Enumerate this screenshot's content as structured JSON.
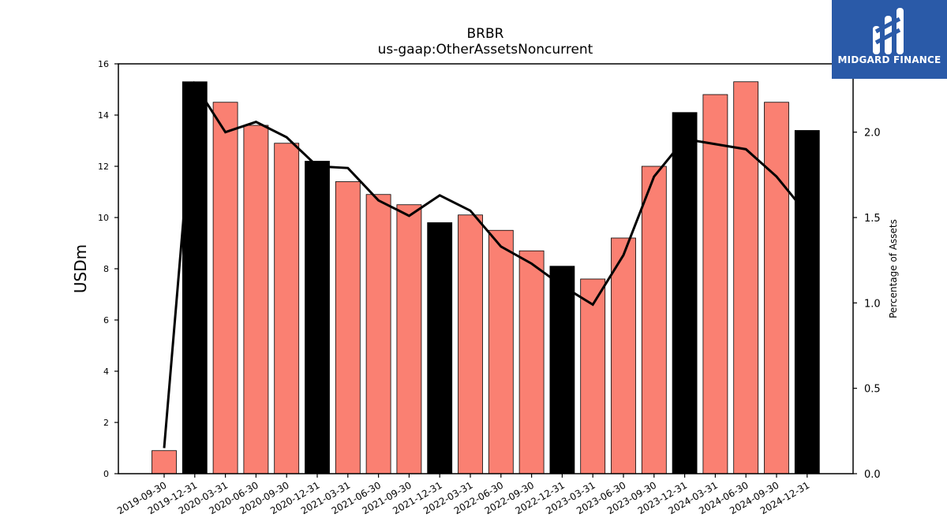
{
  "chart_data": {
    "type": "bar",
    "title": "BRBR",
    "subtitle": "us-gaap:OtherAssetsNoncurrent",
    "ylabel": "USDm",
    "y2label": "Percentage of Assets",
    "ylim": [
      0,
      16
    ],
    "y2lim": [
      0,
      2.4
    ],
    "yticks": [
      "0",
      "2",
      "4",
      "6",
      "8",
      "10",
      "12",
      "14",
      "16"
    ],
    "y2ticks": [
      "0.0",
      "0.5",
      "1.0",
      "1.5",
      "2.0"
    ],
    "categories": [
      "2019-09-30",
      "2019-12-31",
      "2020-03-31",
      "2020-06-30",
      "2020-09-30",
      "2020-12-31",
      "2021-03-31",
      "2021-06-30",
      "2021-09-30",
      "2021-12-31",
      "2022-03-31",
      "2022-06-30",
      "2022-09-30",
      "2022-12-31",
      "2023-03-31",
      "2023-06-30",
      "2023-09-30",
      "2023-12-31",
      "2024-03-31",
      "2024-06-30",
      "2024-09-30",
      "2024-12-31"
    ],
    "series": [
      {
        "type": "bar",
        "values": [
          0.9,
          15.3,
          14.5,
          13.6,
          12.9,
          12.2,
          11.4,
          10.9,
          10.5,
          9.8,
          10.1,
          9.5,
          8.7,
          8.1,
          7.6,
          9.2,
          12.0,
          14.1,
          14.8,
          15.3,
          14.5,
          13.4
        ],
        "colors": [
          "#fa8072",
          "#000000",
          "#fa8072",
          "#fa8072",
          "#fa8072",
          "#000000",
          "#fa8072",
          "#fa8072",
          "#fa8072",
          "#000000",
          "#fa8072",
          "#fa8072",
          "#fa8072",
          "#000000",
          "#fa8072",
          "#fa8072",
          "#fa8072",
          "#000000",
          "#fa8072",
          "#fa8072",
          "#fa8072",
          "#000000"
        ]
      },
      {
        "type": "line",
        "axis": "right",
        "color": "#000000",
        "values": [
          0.15,
          2.28,
          2.0,
          2.06,
          1.97,
          1.8,
          1.79,
          1.6,
          1.51,
          1.63,
          1.54,
          1.33,
          1.23,
          1.1,
          0.99,
          1.28,
          1.74,
          1.96,
          1.93,
          1.9,
          1.74,
          1.52
        ]
      }
    ],
    "grid": false
  },
  "logo": {
    "text": "MIDGARD FINANCE",
    "color": "#2a5aa8"
  }
}
